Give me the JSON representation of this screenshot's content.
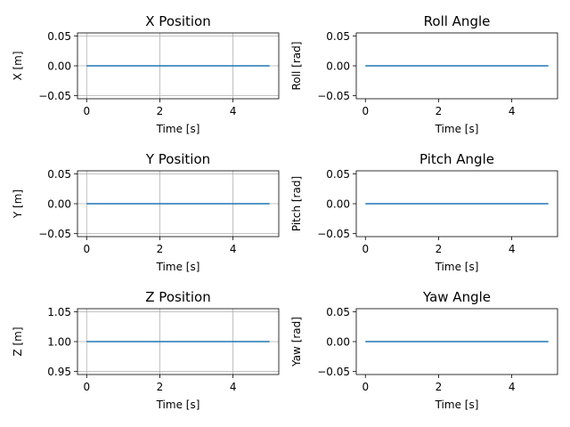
{
  "figure": {
    "background": "#ffffff",
    "line_color": "#1f77b4",
    "grid_color": "#b0b0b0"
  },
  "chart_data": [
    {
      "type": "line",
      "title": "X Position",
      "xlabel": "Time [s]",
      "ylabel": "X [m]",
      "xlim": [
        -0.25,
        5.25
      ],
      "ylim": [
        -0.055,
        0.055
      ],
      "xticks": [
        0,
        2,
        4
      ],
      "xtick_labels": [
        "0",
        "2",
        "4"
      ],
      "yticks": [
        -0.05,
        0.0,
        0.05
      ],
      "ytick_labels": [
        "−0.05",
        "0.00",
        "0.05"
      ],
      "grid": true,
      "series": [
        {
          "x": [
            0,
            5
          ],
          "y": [
            0,
            0
          ]
        }
      ]
    },
    {
      "type": "line",
      "title": "Roll Angle",
      "xlabel": "Time [s]",
      "ylabel": "Roll [rad]",
      "xlim": [
        -0.25,
        5.25
      ],
      "ylim": [
        -0.055,
        0.055
      ],
      "xticks": [
        0,
        2,
        4
      ],
      "xtick_labels": [
        "0",
        "2",
        "4"
      ],
      "yticks": [
        -0.05,
        0.0,
        0.05
      ],
      "ytick_labels": [
        "−0.05",
        "0.00",
        "0.05"
      ],
      "grid": false,
      "series": [
        {
          "x": [
            0,
            5
          ],
          "y": [
            0,
            0
          ]
        }
      ]
    },
    {
      "type": "line",
      "title": "Y Position",
      "xlabel": "Time [s]",
      "ylabel": "Y [m]",
      "xlim": [
        -0.25,
        5.25
      ],
      "ylim": [
        -0.055,
        0.055
      ],
      "xticks": [
        0,
        2,
        4
      ],
      "xtick_labels": [
        "0",
        "2",
        "4"
      ],
      "yticks": [
        -0.05,
        0.0,
        0.05
      ],
      "ytick_labels": [
        "−0.05",
        "0.00",
        "0.05"
      ],
      "grid": true,
      "series": [
        {
          "x": [
            0,
            5
          ],
          "y": [
            0,
            0
          ]
        }
      ]
    },
    {
      "type": "line",
      "title": "Pitch Angle",
      "xlabel": "Time [s]",
      "ylabel": "Pitch [rad]",
      "xlim": [
        -0.25,
        5.25
      ],
      "ylim": [
        -0.055,
        0.055
      ],
      "xticks": [
        0,
        2,
        4
      ],
      "xtick_labels": [
        "0",
        "2",
        "4"
      ],
      "yticks": [
        -0.05,
        0.0,
        0.05
      ],
      "ytick_labels": [
        "−0.05",
        "0.00",
        "0.05"
      ],
      "grid": false,
      "series": [
        {
          "x": [
            0,
            5
          ],
          "y": [
            0,
            0
          ]
        }
      ]
    },
    {
      "type": "line",
      "title": "Z Position",
      "xlabel": "Time [s]",
      "ylabel": "Z [m]",
      "xlim": [
        -0.25,
        5.25
      ],
      "ylim": [
        0.945,
        1.055
      ],
      "xticks": [
        0,
        2,
        4
      ],
      "xtick_labels": [
        "0",
        "2",
        "4"
      ],
      "yticks": [
        0.95,
        1.0,
        1.05
      ],
      "ytick_labels": [
        "0.95",
        "1.00",
        "1.05"
      ],
      "grid": true,
      "series": [
        {
          "x": [
            0,
            5
          ],
          "y": [
            1,
            1
          ]
        }
      ]
    },
    {
      "type": "line",
      "title": "Yaw Angle",
      "xlabel": "Time [s]",
      "ylabel": "Yaw [rad]",
      "xlim": [
        -0.25,
        5.25
      ],
      "ylim": [
        -0.055,
        0.055
      ],
      "xticks": [
        0,
        2,
        4
      ],
      "xtick_labels": [
        "0",
        "2",
        "4"
      ],
      "yticks": [
        -0.05,
        0.0,
        0.05
      ],
      "ytick_labels": [
        "−0.05",
        "0.00",
        "0.05"
      ],
      "grid": false,
      "series": [
        {
          "x": [
            0,
            5
          ],
          "y": [
            0,
            0
          ]
        }
      ]
    }
  ]
}
